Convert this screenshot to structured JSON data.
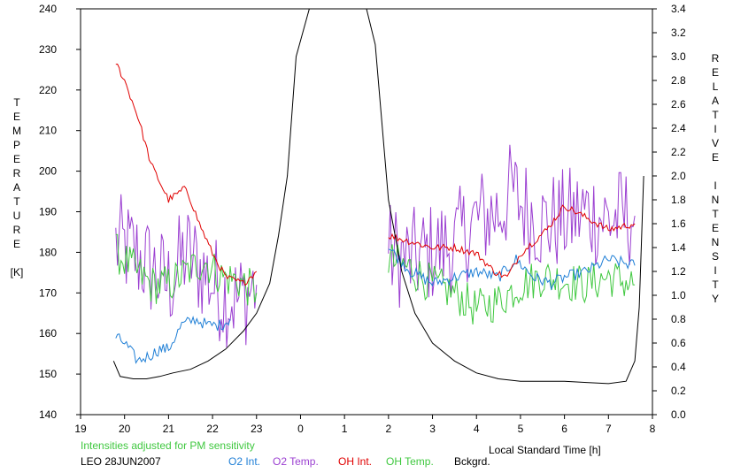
{
  "chart_data": {
    "type": "line",
    "title": "",
    "xlabel": "Local Standard Time [h]",
    "ylabel_left": [
      "T",
      "E",
      "M",
      "P",
      "E",
      "R",
      "A",
      "T",
      "U",
      "R",
      "E",
      "",
      "[K]"
    ],
    "ylabel_right": [
      "R",
      "E",
      "L",
      "A",
      "T",
      "I",
      "V",
      "E",
      "",
      "I",
      "N",
      "T",
      "E",
      "N",
      "S",
      "I",
      "T",
      "Y"
    ],
    "xlim": [
      19,
      32
    ],
    "ylim_left": [
      140,
      240
    ],
    "ylim_right": [
      0.0,
      3.4
    ],
    "x_ticks": [
      19,
      20,
      21,
      22,
      23,
      24,
      25,
      26,
      27,
      28,
      29,
      30,
      31,
      32
    ],
    "x_tick_labels": [
      "19",
      "20",
      "21",
      "22",
      "23",
      "0",
      "1",
      "2",
      "3",
      "4",
      "5",
      "6",
      "7",
      "8"
    ],
    "y_left_ticks": [
      140,
      150,
      160,
      170,
      180,
      190,
      200,
      210,
      220,
      230,
      240
    ],
    "y_left_tick_labels": [
      "140",
      "150",
      "160",
      "170",
      "180",
      "190",
      "200",
      "210",
      "220",
      "230",
      "240"
    ],
    "y_right_ticks": [
      0.0,
      0.2,
      0.4,
      0.6,
      0.8,
      1.0,
      1.2,
      1.4,
      1.6,
      1.8,
      2.0,
      2.2,
      2.4,
      2.6,
      2.8,
      3.0,
      3.2,
      3.4
    ],
    "y_right_tick_labels": [
      "0.0",
      "0.2",
      "0.4",
      "0.6",
      "0.8",
      "1.0",
      "1.2",
      "1.4",
      "1.6",
      "1.8",
      "2.0",
      "2.2",
      "2.4",
      "2.6",
      "2.8",
      "3.0",
      "3.2",
      "3.4"
    ],
    "note": "Intensities adjusted for PM sensitivity",
    "station": "LEO 28JUN2007",
    "legend": [
      {
        "label": "O2 Int.",
        "color": "#1f7fd6"
      },
      {
        "label": "O2 Temp.",
        "color": "#9b3fd1"
      },
      {
        "label": "OH Int.",
        "color": "#e00000"
      },
      {
        "label": "OH Temp.",
        "color": "#3fc83f"
      },
      {
        "label": "Bckgrd.",
        "color": "#000000"
      }
    ],
    "series": [
      {
        "name": "O2 Temp.",
        "axis": "left",
        "color": "#9b3fd1",
        "noise": 13,
        "x": [
          19.8,
          20.2,
          20.6,
          21.0,
          21.4,
          21.8,
          22.2,
          22.6,
          23.0,
          26.0,
          26.5,
          27.0,
          27.5,
          28.0,
          28.5,
          28.8,
          29.0,
          29.5,
          30.0,
          30.5,
          31.0,
          31.6
        ],
        "values": [
          182,
          180,
          176,
          172,
          180,
          175,
          170,
          168,
          172,
          180,
          178,
          180,
          182,
          188,
          190,
          195,
          192,
          187,
          188,
          190,
          188,
          189
        ]
      },
      {
        "name": "OH Temp.",
        "axis": "left",
        "color": "#3fc83f",
        "noise": 5,
        "x": [
          19.8,
          20.2,
          20.6,
          21.0,
          21.4,
          21.8,
          22.2,
          22.6,
          23.0,
          26.0,
          26.5,
          27.0,
          27.5,
          28.0,
          28.5,
          29.0,
          29.5,
          30.0,
          30.5,
          31.0,
          31.6
        ],
        "values": [
          180,
          176,
          172,
          172,
          175,
          178,
          174,
          173,
          170,
          178,
          176,
          172,
          170,
          166,
          168,
          172,
          174,
          173,
          172,
          174,
          172
        ]
      },
      {
        "name": "O2 Int.",
        "axis": "right",
        "color": "#1f7fd6",
        "noise": 0.05,
        "x": [
          19.8,
          20.0,
          20.3,
          20.6,
          20.8,
          21.0,
          21.3,
          21.6,
          21.9,
          22.2,
          22.4,
          26.0,
          26.5,
          27.0,
          27.5,
          28.0,
          28.5,
          28.9,
          29.3,
          29.7,
          30.0,
          30.5,
          31.0,
          31.6
        ],
        "values": [
          0.65,
          0.6,
          0.45,
          0.5,
          0.55,
          0.55,
          0.75,
          0.8,
          0.75,
          0.75,
          0.8,
          1.4,
          1.2,
          1.1,
          1.15,
          1.2,
          1.15,
          1.3,
          1.15,
          1.1,
          1.15,
          1.2,
          1.3,
          1.25
        ]
      },
      {
        "name": "OH Int.",
        "axis": "right",
        "color": "#e00000",
        "noise": 0.03,
        "x": [
          19.8,
          20.0,
          20.3,
          20.6,
          21.0,
          21.4,
          21.7,
          22.0,
          22.3,
          22.7,
          23.0,
          26.0,
          26.5,
          27.0,
          27.5,
          28.0,
          28.4,
          28.7,
          29.0,
          29.3,
          29.6,
          30.0,
          30.5,
          31.0,
          31.6
        ],
        "values": [
          2.95,
          2.8,
          2.5,
          2.1,
          1.8,
          1.9,
          1.6,
          1.35,
          1.15,
          1.1,
          1.2,
          1.5,
          1.45,
          1.4,
          1.4,
          1.35,
          1.2,
          1.15,
          1.35,
          1.45,
          1.55,
          1.75,
          1.65,
          1.55,
          1.6
        ]
      },
      {
        "name": "Bckgrd.",
        "axis": "right",
        "color": "#000000",
        "noise": 0,
        "x": [
          19.75,
          19.9,
          20.2,
          20.5,
          20.8,
          21.1,
          21.5,
          21.9,
          22.3,
          22.7,
          23.0,
          23.3,
          23.5,
          23.7,
          23.9,
          24.2,
          24.5,
          25.3,
          25.5,
          25.7,
          26.0,
          26.3,
          26.6,
          27.0,
          27.5,
          28.0,
          28.5,
          29.0,
          29.5,
          30.0,
          30.5,
          31.0,
          31.4,
          31.6,
          31.7,
          31.8
        ],
        "values": [
          0.45,
          0.32,
          0.3,
          0.3,
          0.32,
          0.35,
          0.38,
          0.45,
          0.55,
          0.7,
          0.85,
          1.1,
          1.5,
          2.0,
          3.0,
          3.4,
          3.4,
          3.4,
          3.4,
          3.1,
          1.8,
          1.2,
          0.85,
          0.6,
          0.45,
          0.35,
          0.3,
          0.28,
          0.28,
          0.28,
          0.27,
          0.26,
          0.28,
          0.45,
          0.9,
          2.0
        ]
      }
    ]
  }
}
